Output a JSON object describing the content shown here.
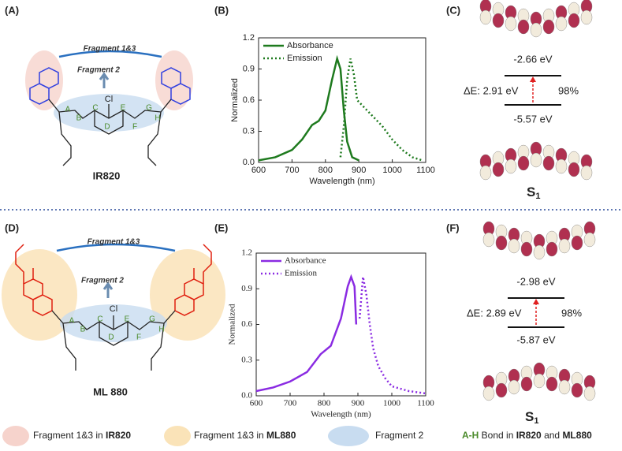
{
  "panels": [
    "(A)",
    "(B)",
    "(C)",
    "(D)",
    "(E)",
    "(F)"
  ],
  "chart_data": [
    {
      "type": "line",
      "xlabel": "Wavelength (nm)",
      "ylabel": "Normalized",
      "xlim": [
        600,
        1100
      ],
      "ylim": [
        0,
        1.2
      ],
      "xticks": [
        600,
        700,
        800,
        900,
        1000,
        1100
      ],
      "yticks": [
        {
          "value": 0,
          "label": "0.0"
        },
        0.3,
        0.6,
        0.9,
        1.2
      ],
      "legend": "upper left",
      "series": [
        {
          "name": "Absorbance",
          "color": "#1e7a1e",
          "dash": "solid",
          "x": [
            600,
            650,
            700,
            730,
            760,
            780,
            800,
            820,
            835,
            845,
            855,
            865,
            880,
            900
          ],
          "values": [
            0.02,
            0.05,
            0.12,
            0.22,
            0.36,
            0.4,
            0.5,
            0.8,
            1.0,
            0.9,
            0.5,
            0.2,
            0.05,
            0.02
          ]
        },
        {
          "name": "Emission",
          "color": "#1e7a1e",
          "dash": "dotted",
          "x": [
            845,
            855,
            865,
            875,
            885,
            895,
            910,
            940,
            970,
            1000,
            1030,
            1060,
            1090
          ],
          "values": [
            0.05,
            0.35,
            0.8,
            1.0,
            0.85,
            0.6,
            0.55,
            0.45,
            0.35,
            0.22,
            0.12,
            0.05,
            0.02
          ]
        }
      ]
    },
    {
      "type": "line",
      "xlabel": "Wavelength (nm)",
      "ylabel": "Normalized",
      "xlim": [
        600,
        1100
      ],
      "ylim": [
        0,
        1.2
      ],
      "xticks": [
        600,
        700,
        800,
        900,
        1000,
        1100
      ],
      "yticks": [
        {
          "value": 0,
          "label": "0.0"
        },
        0.3,
        0.6,
        0.9,
        1.2
      ],
      "legend": "upper left",
      "series": [
        {
          "name": "Absorbance",
          "color": "#8a2be2",
          "dash": "solid",
          "x": [
            600,
            650,
            700,
            750,
            790,
            820,
            850,
            870,
            880,
            890,
            895
          ],
          "values": [
            0.04,
            0.07,
            0.12,
            0.2,
            0.35,
            0.42,
            0.65,
            0.92,
            1.0,
            0.92,
            0.6
          ]
        },
        {
          "name": "Emission",
          "color": "#8a2be2",
          "dash": "dotted",
          "x": [
            905,
            915,
            925,
            935,
            945,
            960,
            980,
            1000,
            1050,
            1100
          ],
          "values": [
            0.65,
            1.0,
            0.85,
            0.6,
            0.4,
            0.25,
            0.15,
            0.08,
            0.04,
            0.02
          ]
        }
      ]
    }
  ],
  "molecules": [
    {
      "fragment13": "Fragment 1&3",
      "fragment2": "Fragment 2",
      "name": "IR820",
      "cl": "Cl",
      "bonds": [
        "A",
        "B",
        "C",
        "D",
        "E",
        "F",
        "G",
        "H"
      ]
    },
    {
      "fragment13": "Fragment 1&3",
      "fragment2": "Fragment 2",
      "name": "ML 880",
      "cl": "Cl",
      "bonds": [
        "A",
        "B",
        "C",
        "D",
        "E",
        "F",
        "G",
        "H"
      ]
    }
  ],
  "orbitals": [
    {
      "lumo": "-2.66 eV",
      "homo": "-5.57 eV",
      "gap": "ΔE: 2.91 eV",
      "percent": "98%",
      "state": "S",
      "state_sub": "1"
    },
    {
      "lumo": "-2.98 eV",
      "homo": "-5.87 eV",
      "gap": "ΔE: 2.89 eV",
      "percent": "98%",
      "state": "S",
      "state_sub": "1"
    }
  ],
  "legend": {
    "item1": [
      "Fragment 1&3 in ",
      "IR820"
    ],
    "item2": [
      "Fragment 1&3 in ",
      "ML880"
    ],
    "item3": "Fragment 2",
    "item4": [
      "A-H",
      " Bond in ",
      "IR820",
      " and ",
      "ML880"
    ]
  }
}
